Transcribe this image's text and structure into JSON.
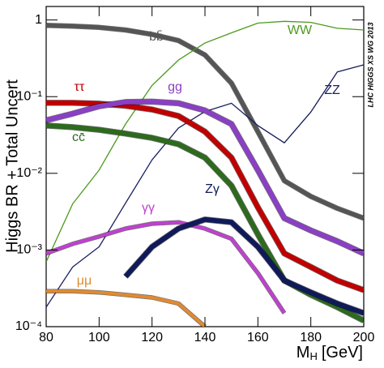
{
  "chart_data": {
    "type": "line",
    "y_label": "Higgs BR + Total Uncert",
    "x_label": "M",
    "x_label_sub": "H",
    "x_label_unit": "[GeV]",
    "annotation": "LHC HIGGS XS WG 2013",
    "log_y": true,
    "x": [
      80,
      90,
      100,
      110,
      120,
      130,
      140,
      150,
      160,
      170,
      180,
      190,
      200
    ],
    "xlim": [
      80,
      200
    ],
    "xticks": [
      80,
      100,
      120,
      140,
      160,
      180,
      200
    ],
    "ylim": [
      0.0001,
      1.5
    ],
    "yticks": [
      {
        "value": 0.0001,
        "label": "10⁻⁴"
      },
      {
        "value": 0.001,
        "label": "10⁻³"
      },
      {
        "value": 0.01,
        "label": "10⁻²"
      },
      {
        "value": 0.1,
        "label": "10⁻¹"
      },
      1
    ],
    "series": [
      {
        "name": "bb̄",
        "color": "#555555",
        "width": 5,
        "values": [
          0.85,
          0.83,
          0.8,
          0.74,
          0.65,
          0.54,
          0.35,
          0.15,
          0.035,
          0.008,
          0.005,
          0.0035,
          0.0026
        ]
      },
      {
        "name": "WW",
        "color": "#4c9a1e",
        "width": 1.3,
        "values": [
          0.0007,
          0.004,
          0.011,
          0.044,
          0.14,
          0.3,
          0.5,
          0.68,
          0.91,
          0.96,
          0.93,
          0.78,
          0.74
        ]
      },
      {
        "name": "ZZ",
        "color": "#111111",
        "width": 1,
        "values": [
          null,
          null,
          null,
          null,
          null,
          null,
          null,
          null,
          0.042,
          0.025,
          0.063,
          0.21,
          0.26
        ]
      },
      {
        "name": "ZZ",
        "color": "#1a2060",
        "width": 1.3,
        "values": [
          0.00018,
          0.0006,
          0.0011,
          0.0041,
          0.015,
          0.039,
          0.064,
          0.082,
          0.042,
          0.025,
          0.063,
          0.21,
          0.26
        ]
      },
      {
        "name": "ττ",
        "color": "#c00000",
        "width": 6,
        "values": [
          0.083,
          0.083,
          0.081,
          0.076,
          0.068,
          0.056,
          0.035,
          0.016,
          0.0036,
          0.0009,
          0.0006,
          0.0004,
          0.0003
        ]
      },
      {
        "name": "gg",
        "color": "#8a3fc4",
        "width": 6,
        "values": [
          0.049,
          0.06,
          0.075,
          0.085,
          0.086,
          0.082,
          0.066,
          0.044,
          0.011,
          0.0026,
          0.0018,
          0.0013,
          0.0009
        ]
      },
      {
        "name": "cc̄",
        "color": "#2d6a1e",
        "width": 6,
        "values": [
          0.042,
          0.04,
          0.037,
          0.033,
          0.029,
          0.024,
          0.016,
          0.0069,
          0.0016,
          0.0004,
          0.00026,
          0.00018,
          0.00012
        ]
      },
      {
        "name": "γγ",
        "color": "#c040d0",
        "width": 4,
        "values": [
          0.0009,
          0.0012,
          0.0015,
          0.0019,
          0.0022,
          0.0023,
          0.0019,
          0.0014,
          0.0005,
          0.00015,
          null,
          null,
          null
        ]
      },
      {
        "name": "Zγ",
        "color": "#101a5a",
        "width": 6,
        "values": [
          null,
          null,
          null,
          0.00045,
          0.0011,
          0.0019,
          0.0025,
          0.0023,
          0.0011,
          0.0004,
          0.00028,
          0.0002,
          0.00015
        ]
      },
      {
        "name": "μμ",
        "color": "#e08a30",
        "width": 4,
        "values": [
          0.00029,
          0.00029,
          0.00028,
          0.00026,
          0.00024,
          0.0002,
          0.0001,
          null,
          null,
          null,
          null,
          null,
          null
        ]
      }
    ]
  }
}
